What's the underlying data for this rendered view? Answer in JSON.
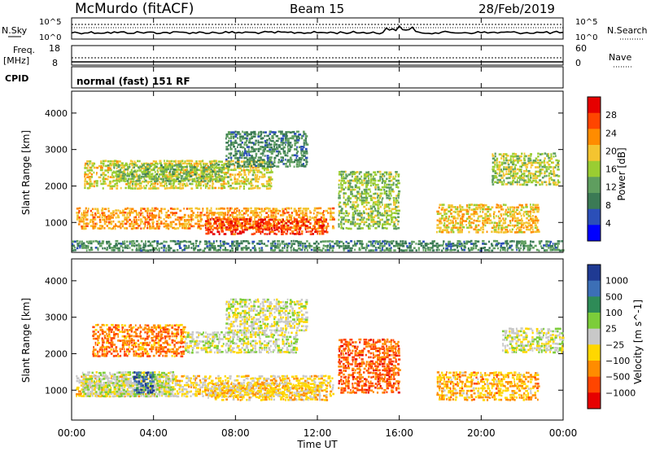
{
  "header": {
    "station": "McMurdo (fitACF)",
    "beam": "Beam 15",
    "date": "28/Feb/2019"
  },
  "noise_panel": {
    "left_label": "N.Sky",
    "right_label": "N.Search",
    "left_ticks": [
      "10^5",
      "10^0"
    ],
    "right_ticks": [
      "10^5",
      "10^0"
    ]
  },
  "freq_panel": {
    "left_label_line1": "Freq.",
    "left_label_line2": "[MHz]",
    "right_label": "Nave",
    "left_ticks": [
      "18",
      "8"
    ],
    "right_ticks": [
      "60",
      "0"
    ]
  },
  "cpid_panel": {
    "label": "CPID",
    "mode": "normal (fast) 151 RF"
  },
  "time_axis": {
    "label": "Time UT",
    "ticks": [
      "00:00",
      "04:00",
      "08:00",
      "12:00",
      "16:00",
      "20:00",
      "00:00"
    ]
  },
  "colors": {
    "power": [
      "#0000ff",
      "#2b4fb8",
      "#3b7a55",
      "#5f9e5f",
      "#9acd32",
      "#f4c430",
      "#ff8c00",
      "#ff4500",
      "#e60000"
    ],
    "velocity": [
      "#1f3a93",
      "#3c6fb6",
      "#2e8b57",
      "#7ccd3a",
      "#c8c8c8",
      "#ffd700",
      "#ff8c00",
      "#ff4500",
      "#e60000"
    ]
  },
  "chart_data": [
    {
      "type": "heatmap",
      "title": "",
      "xlabel": "Time UT",
      "ylabel": "Slant Range [km]",
      "xlim": [
        0,
        24
      ],
      "ylim": [
        180,
        4600
      ],
      "yticks": [
        1000,
        2000,
        3000,
        4000
      ],
      "colorbar_label": "Power [dB]",
      "colorbar_ticks": [
        "28",
        "24",
        "20",
        "16",
        "12",
        "8",
        "4"
      ],
      "clim": [
        0,
        32
      ],
      "echo_regions": [
        {
          "t0": 0.2,
          "t1": 12.8,
          "r0": 800,
          "r1": 1400,
          "value": 22
        },
        {
          "t0": 6.5,
          "t1": 12.5,
          "r0": 650,
          "r1": 1100,
          "value": 28
        },
        {
          "t0": 0.6,
          "t1": 9.8,
          "r0": 1900,
          "r1": 2700,
          "value": 18
        },
        {
          "t0": 2.0,
          "t1": 7.5,
          "r0": 2100,
          "r1": 2600,
          "value": 14
        },
        {
          "t0": 7.5,
          "t1": 11.5,
          "r0": 2500,
          "r1": 3500,
          "value": 10
        },
        {
          "t0": 13.0,
          "t1": 16.0,
          "r0": 800,
          "r1": 2400,
          "value": 15
        },
        {
          "t0": 17.8,
          "t1": 22.8,
          "r0": 700,
          "r1": 1500,
          "value": 20
        },
        {
          "t0": 20.5,
          "t1": 23.8,
          "r0": 2000,
          "r1": 2900,
          "value": 16
        },
        {
          "t0": 0.0,
          "t1": 24.0,
          "r0": 200,
          "r1": 500,
          "value": 10
        }
      ]
    },
    {
      "type": "heatmap",
      "title": "",
      "xlabel": "Time UT",
      "ylabel": "Slant Range [km]",
      "xlim": [
        0,
        24
      ],
      "ylim": [
        180,
        4600
      ],
      "yticks": [
        1000,
        2000,
        3000,
        4000
      ],
      "colorbar_label": "Velocity [m s^-1]",
      "colorbar_ticks": [
        "1000",
        "500",
        "100",
        "25",
        "−25",
        "−100",
        "−500",
        "−1000"
      ],
      "clim": [
        -1200,
        1200
      ],
      "echo_regions": [
        {
          "t0": 0.2,
          "t1": 12.8,
          "r0": 800,
          "r1": 1400,
          "value": -200
        },
        {
          "t0": 0.5,
          "t1": 5.0,
          "r0": 800,
          "r1": 1500,
          "value": 80
        },
        {
          "t0": 6.5,
          "t1": 12.5,
          "r0": 700,
          "r1": 1200,
          "value": -300
        },
        {
          "t0": 1.0,
          "t1": 5.5,
          "r0": 1900,
          "r1": 2800,
          "value": -600
        },
        {
          "t0": 5.5,
          "t1": 11.0,
          "r0": 2000,
          "r1": 2600,
          "value": 0
        },
        {
          "t0": 7.5,
          "t1": 11.5,
          "r0": 2600,
          "r1": 3500,
          "value": -50
        },
        {
          "t0": 13.0,
          "t1": 16.0,
          "r0": 900,
          "r1": 2400,
          "value": -700
        },
        {
          "t0": 17.8,
          "t1": 22.8,
          "r0": 700,
          "r1": 1500,
          "value": -400
        },
        {
          "t0": 21.0,
          "t1": 24.0,
          "r0": 2000,
          "r1": 2700,
          "value": 0
        },
        {
          "t0": 3.0,
          "t1": 4.0,
          "r0": 900,
          "r1": 1500,
          "value": 900
        }
      ]
    }
  ]
}
